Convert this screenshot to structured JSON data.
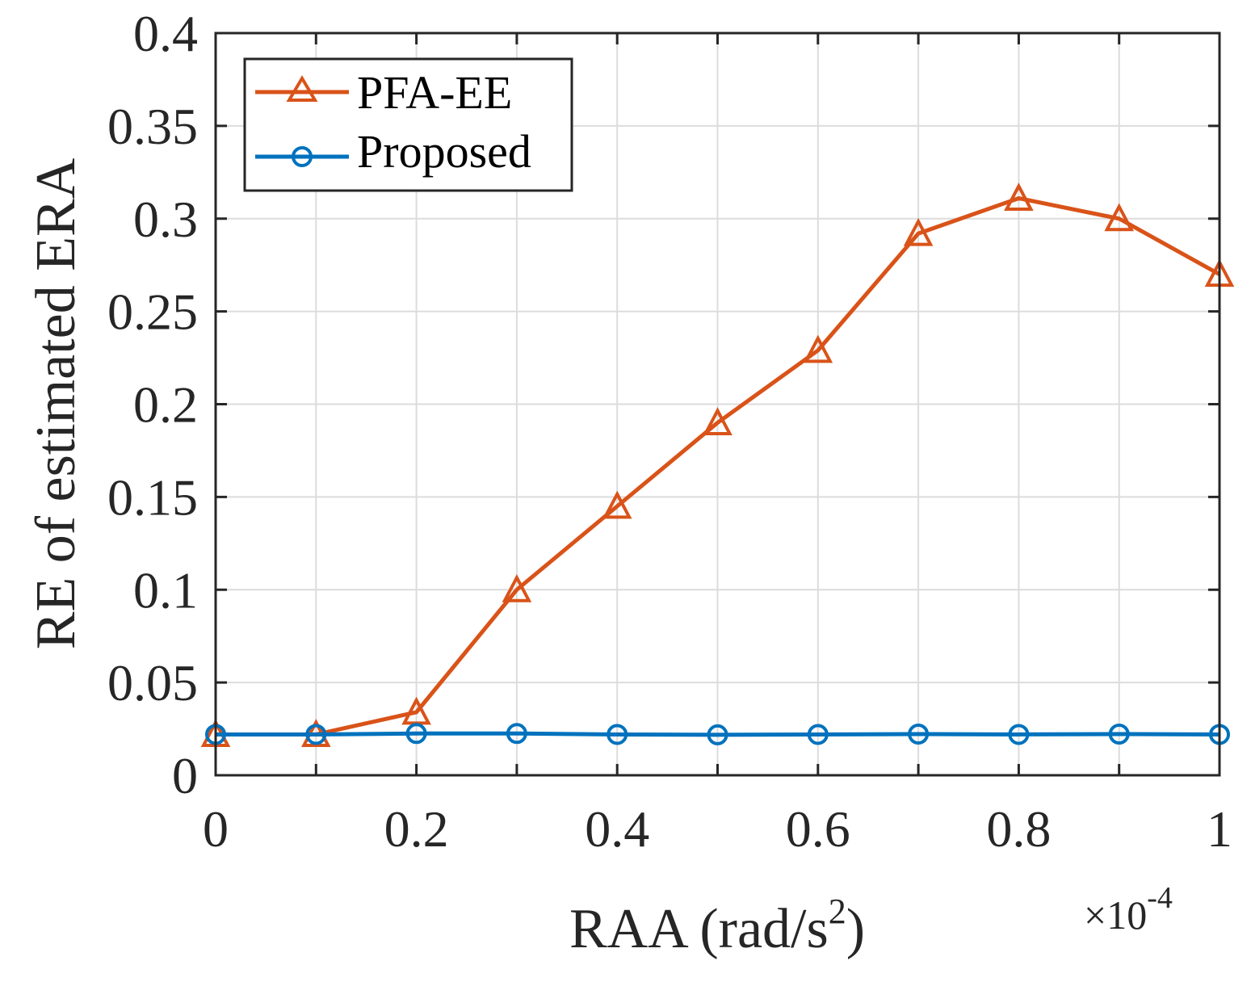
{
  "chart_data": {
    "type": "line",
    "title": "",
    "xlabel_main": "RAA (rad/s",
    "xlabel_sup": "2",
    "xlabel_tail": ")",
    "ylabel": "RE of estimated ERA",
    "x_multiplier_base": "×10",
    "x_multiplier_exponent": "-4",
    "xlim": [
      0,
      1
    ],
    "ylim": [
      0,
      0.4
    ],
    "xticks": [
      0,
      0.2,
      0.4,
      0.6,
      0.8,
      1
    ],
    "xtick_labels": [
      "0",
      "0.2",
      "0.4",
      "0.6",
      "0.8",
      "1"
    ],
    "yticks": [
      0,
      0.05,
      0.1,
      0.15,
      0.2,
      0.25,
      0.3,
      0.35,
      0.4
    ],
    "ytick_labels": [
      "0",
      "0.05",
      "0.1",
      "0.15",
      "0.2",
      "0.25",
      "0.3",
      "0.35",
      "0.4"
    ],
    "grid": true,
    "legend_position": "top-left",
    "x": [
      0,
      0.1,
      0.2,
      0.3,
      0.4,
      0.5,
      0.6,
      0.7,
      0.8,
      0.9,
      1.0
    ],
    "series": [
      {
        "name": "PFA-EE",
        "marker": "triangle",
        "color": "#D95319",
        "values": [
          0.022,
          0.022,
          0.034,
          0.1,
          0.145,
          0.19,
          0.229,
          0.292,
          0.311,
          0.3,
          0.27
        ]
      },
      {
        "name": "Proposed",
        "marker": "circle",
        "color": "#0072BD",
        "values": [
          0.022,
          0.022,
          0.0225,
          0.0225,
          0.022,
          0.0218,
          0.022,
          0.0222,
          0.022,
          0.0222,
          0.022
        ]
      }
    ]
  }
}
